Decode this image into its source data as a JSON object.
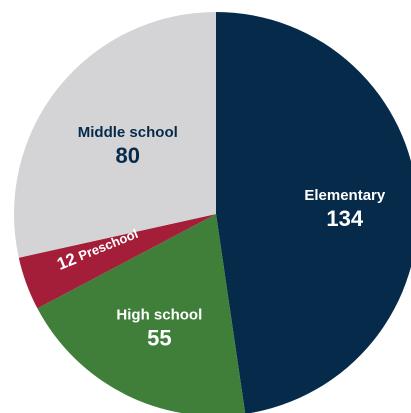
{
  "chart_data": {
    "type": "pie",
    "title": "",
    "slices": [
      {
        "label": "Elementary",
        "value": 134,
        "color": "#062a4a",
        "text_color": "#ffffff"
      },
      {
        "label": "High school",
        "value": 55,
        "color": "#3f7f3a",
        "text_color": "#ffffff"
      },
      {
        "label": "Preschool",
        "value": 12,
        "color": "#a41e3a",
        "text_color": "#ffffff"
      },
      {
        "label": "Middle school",
        "value": 80,
        "color": "#d4d4d6",
        "text_color": "#062a4a"
      }
    ],
    "start": "top",
    "direction": "clockwise",
    "legend": "none"
  }
}
